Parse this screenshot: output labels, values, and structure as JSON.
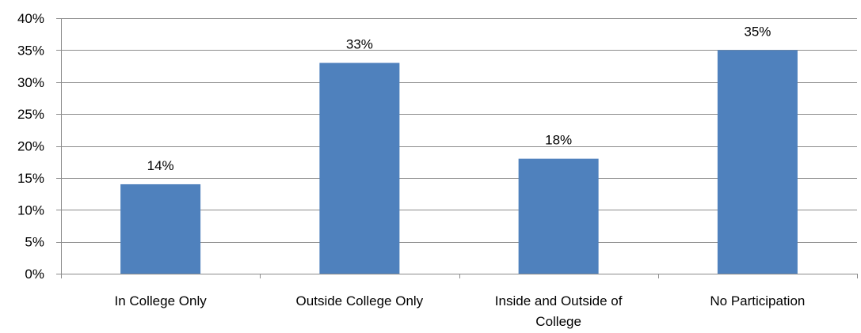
{
  "chart_data": {
    "type": "bar",
    "title": "",
    "xlabel": "",
    "ylabel": "",
    "categories": [
      "In College Only",
      "Outside College Only",
      "Inside and Outside of College",
      "No Participation"
    ],
    "category_lines": [
      [
        "In College Only"
      ],
      [
        "Outside College Only"
      ],
      [
        "Inside and Outside of",
        "College"
      ],
      [
        "No Participation"
      ]
    ],
    "values": [
      14,
      33,
      18,
      35
    ],
    "data_labels": [
      "14%",
      "33%",
      "18%",
      "35%"
    ],
    "ylim": [
      0,
      40
    ],
    "yticks": [
      0,
      5,
      10,
      15,
      20,
      25,
      30,
      35,
      40
    ],
    "ytick_labels": [
      "0%",
      "5%",
      "10%",
      "15%",
      "20%",
      "25%",
      "30%",
      "35%",
      "40%"
    ],
    "grid": true,
    "legend": "none",
    "bar_color": "#4f81bd"
  }
}
